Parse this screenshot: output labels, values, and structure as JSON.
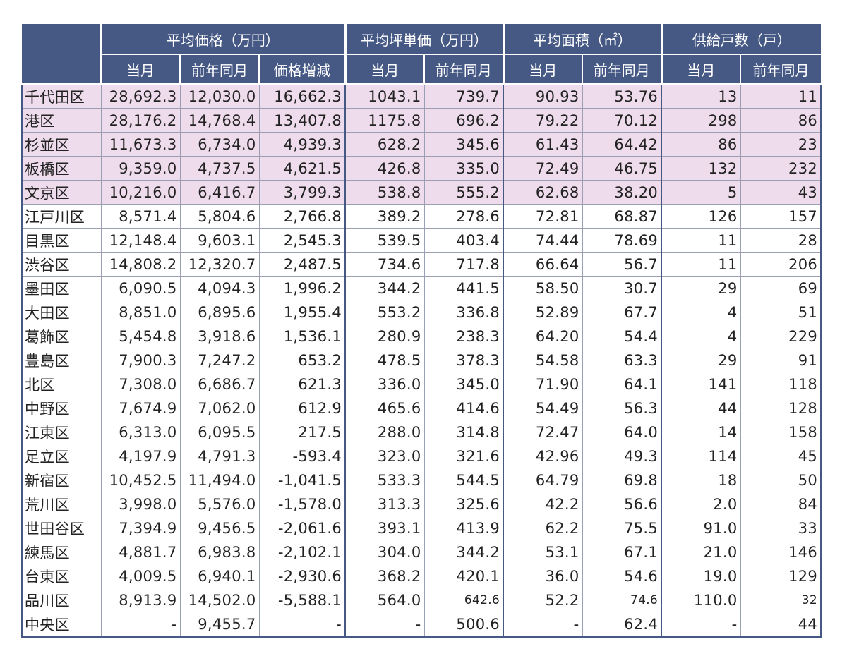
{
  "header": {
    "groups": [
      "平均価格（万円）",
      "平均坪単価（万円）",
      "平均面積（㎡）",
      "供給戸数（戸）"
    ],
    "sub": [
      "当月",
      "前年同月",
      "価格増減",
      "当月",
      "前年同月",
      "当月",
      "前年同月",
      "当月",
      "前年同月"
    ]
  },
  "rows": [
    {
      "name": "千代田区",
      "cells": [
        "28,692.3",
        "12,030.0",
        "16,662.3",
        "1043.1",
        "739.7",
        "90.93",
        "53.76",
        "13",
        "11"
      ]
    },
    {
      "name": "港区",
      "cells": [
        "28,176.2",
        "14,768.4",
        "13,407.8",
        "1175.8",
        "696.2",
        "79.22",
        "70.12",
        "298",
        "86"
      ]
    },
    {
      "name": "杉並区",
      "cells": [
        "11,673.3",
        "6,734.0",
        "4,939.3",
        "628.2",
        "345.6",
        "61.43",
        "64.42",
        "86",
        "23"
      ]
    },
    {
      "name": "板橋区",
      "cells": [
        "9,359.0",
        "4,737.5",
        "4,621.5",
        "426.8",
        "335.0",
        "72.49",
        "46.75",
        "132",
        "232"
      ]
    },
    {
      "name": "文京区",
      "cells": [
        "10,216.0",
        "6,416.7",
        "3,799.3",
        "538.8",
        "555.2",
        "62.68",
        "38.20",
        "5",
        "43"
      ]
    },
    {
      "name": "江戸川区",
      "cells": [
        "8,571.4",
        "5,804.6",
        "2,766.8",
        "389.2",
        "278.6",
        "72.81",
        "68.87",
        "126",
        "157"
      ]
    },
    {
      "name": "目黒区",
      "cells": [
        "12,148.4",
        "9,603.1",
        "2,545.3",
        "539.5",
        "403.4",
        "74.44",
        "78.69",
        "11",
        "28"
      ]
    },
    {
      "name": "渋谷区",
      "cells": [
        "14,808.2",
        "12,320.7",
        "2,487.5",
        "734.6",
        "717.8",
        "66.64",
        "56.7",
        "11",
        "206"
      ]
    },
    {
      "name": "墨田区",
      "cells": [
        "6,090.5",
        "4,094.3",
        "1,996.2",
        "344.2",
        "441.5",
        "58.50",
        "30.7",
        "29",
        "69"
      ]
    },
    {
      "name": "大田区",
      "cells": [
        "8,851.0",
        "6,895.6",
        "1,955.4",
        "553.2",
        "336.8",
        "52.89",
        "67.7",
        "4",
        "51"
      ]
    },
    {
      "name": "葛飾区",
      "cells": [
        "5,454.8",
        "3,918.6",
        "1,536.1",
        "280.9",
        "238.3",
        "64.20",
        "54.4",
        "4",
        "229"
      ]
    },
    {
      "name": "豊島区",
      "cells": [
        "7,900.3",
        "7,247.2",
        "653.2",
        "478.5",
        "378.3",
        "54.58",
        "63.3",
        "29",
        "91"
      ]
    },
    {
      "name": "北区",
      "cells": [
        "7,308.0",
        "6,686.7",
        "621.3",
        "336.0",
        "345.0",
        "71.90",
        "64.1",
        "141",
        "118"
      ]
    },
    {
      "name": "中野区",
      "cells": [
        "7,674.9",
        "7,062.0",
        "612.9",
        "465.6",
        "414.6",
        "54.49",
        "56.3",
        "44",
        "128"
      ]
    },
    {
      "name": "江東区",
      "cells": [
        "6,313.0",
        "6,095.5",
        "217.5",
        "288.0",
        "314.8",
        "72.47",
        "64.0",
        "14",
        "158"
      ]
    },
    {
      "name": "足立区",
      "cells": [
        "4,197.9",
        "4,791.3",
        "-593.4",
        "323.0",
        "321.6",
        "42.96",
        "49.3",
        "114",
        "45"
      ]
    },
    {
      "name": "新宿区",
      "cells": [
        "10,452.5",
        "11,494.0",
        "-1,041.5",
        "533.3",
        "544.5",
        "64.79",
        "69.8",
        "18",
        "50"
      ]
    },
    {
      "name": "荒川区",
      "cells": [
        "3,998.0",
        "5,576.0",
        "-1,578.0",
        "313.3",
        "325.6",
        "42.2",
        "56.6",
        "2.0",
        "84"
      ]
    },
    {
      "name": "世田谷区",
      "cells": [
        "7,394.9",
        "9,456.5",
        "-2,061.6",
        "393.1",
        "413.9",
        "62.2",
        "75.5",
        "91.0",
        "33"
      ]
    },
    {
      "name": "練馬区",
      "cells": [
        "4,881.7",
        "6,983.8",
        "-2,102.1",
        "304.0",
        "344.2",
        "53.1",
        "67.1",
        "21.0",
        "146"
      ]
    },
    {
      "name": "台東区",
      "cells": [
        "4,009.5",
        "6,940.1",
        "-2,930.6",
        "368.2",
        "420.1",
        "36.0",
        "54.6",
        "19.0",
        "129"
      ]
    },
    {
      "name": "品川区",
      "cells": [
        "8,913.9",
        "14,502.0",
        "-5,588.1",
        "564.0",
        "642.6",
        "52.2",
        "74.6",
        "110.0",
        "32"
      ]
    },
    {
      "name": "中央区",
      "cells": [
        "-",
        "9,455.7",
        "-",
        "-",
        "500.6",
        "-",
        "62.4",
        "-",
        "44"
      ]
    }
  ],
  "highlight_color": "#eedcec",
  "header_color": "#465985"
}
